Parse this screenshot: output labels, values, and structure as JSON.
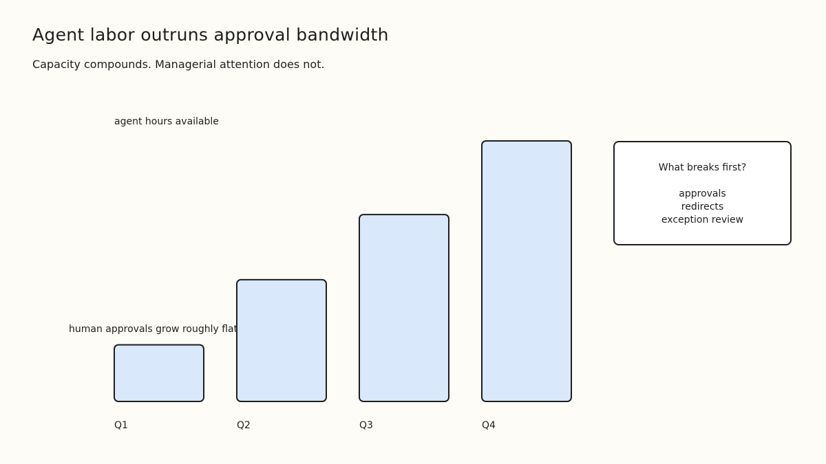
{
  "chart_data": {
    "type": "bar",
    "title": "Agent labor outruns approval bandwidth",
    "subtitle": "Capacity compounds. Managerial attention does not.",
    "categories": [
      "Q1",
      "Q2",
      "Q3",
      "Q4"
    ],
    "values": [
      1,
      2.15,
      3.3,
      4.6
    ],
    "ylim": [
      0,
      4.6
    ],
    "grid": false,
    "annotations": [
      "agent hours available",
      "human approvals grow roughly flat"
    ],
    "colors": {
      "bar_fill": "#dae8fc",
      "bar_stroke": "#1e1e1e"
    }
  },
  "callout": {
    "question": "What breaks first?",
    "items": [
      "approvals",
      "redirects",
      "exception review"
    ]
  }
}
